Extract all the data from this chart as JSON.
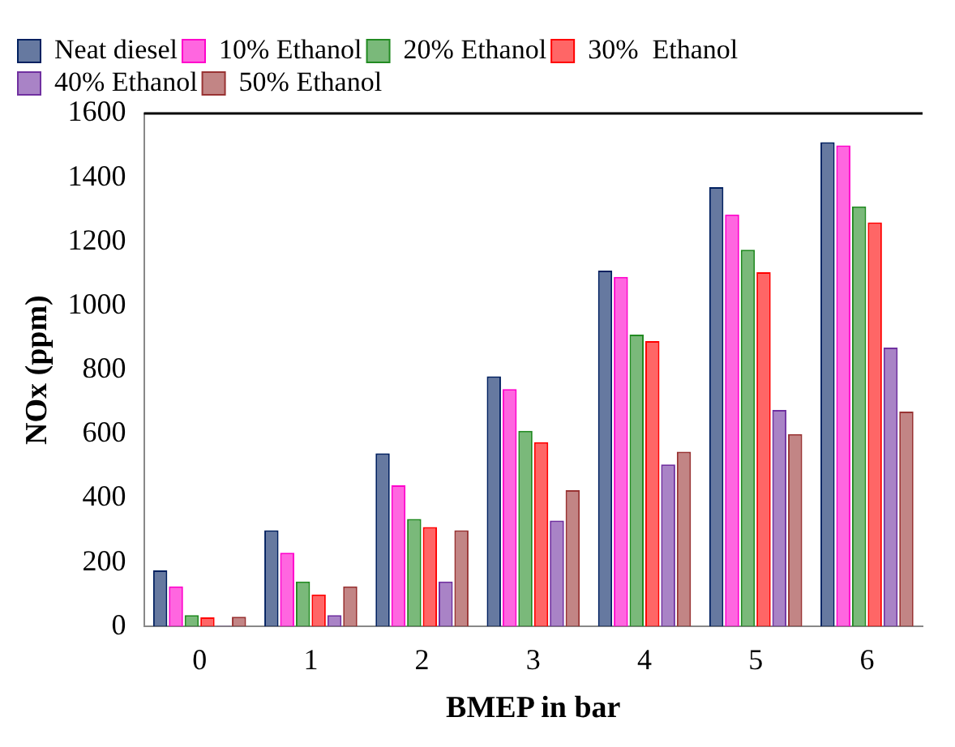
{
  "chart_data": {
    "type": "bar",
    "xlabel": "BMEP in bar",
    "ylabel": "NOx (ppm)",
    "categories": [
      "0",
      "1",
      "2",
      "3",
      "4",
      "5",
      "6"
    ],
    "series": [
      {
        "name": "Neat diesel",
        "color": "#002060",
        "values": [
          175,
          300,
          540,
          780,
          1110,
          1370,
          1510
        ]
      },
      {
        "name": "10% Ethanol",
        "color": "#ff00cc",
        "values": [
          125,
          230,
          440,
          740,
          1090,
          1285,
          1500
        ]
      },
      {
        "name": "20% Ethanol",
        "color": "#228b22",
        "values": [
          35,
          140,
          335,
          610,
          910,
          1175,
          1310
        ]
      },
      {
        "name": "30%  Ethanol",
        "color": "#ff0000",
        "values": [
          28,
          100,
          310,
          575,
          890,
          1105,
          1260
        ]
      },
      {
        "name": "40% Ethanol",
        "color": "#7030a0",
        "values": [
          2,
          35,
          140,
          330,
          505,
          675,
          870
        ]
      },
      {
        "name": "50% Ethanol",
        "color": "#993333",
        "values": [
          30,
          125,
          300,
          425,
          545,
          600,
          670
        ]
      }
    ],
    "ylim": [
      0,
      1600
    ],
    "yticks": [
      0,
      200,
      400,
      600,
      800,
      1000,
      1200,
      1400,
      1600
    ],
    "grid": false,
    "legend": "top left"
  }
}
